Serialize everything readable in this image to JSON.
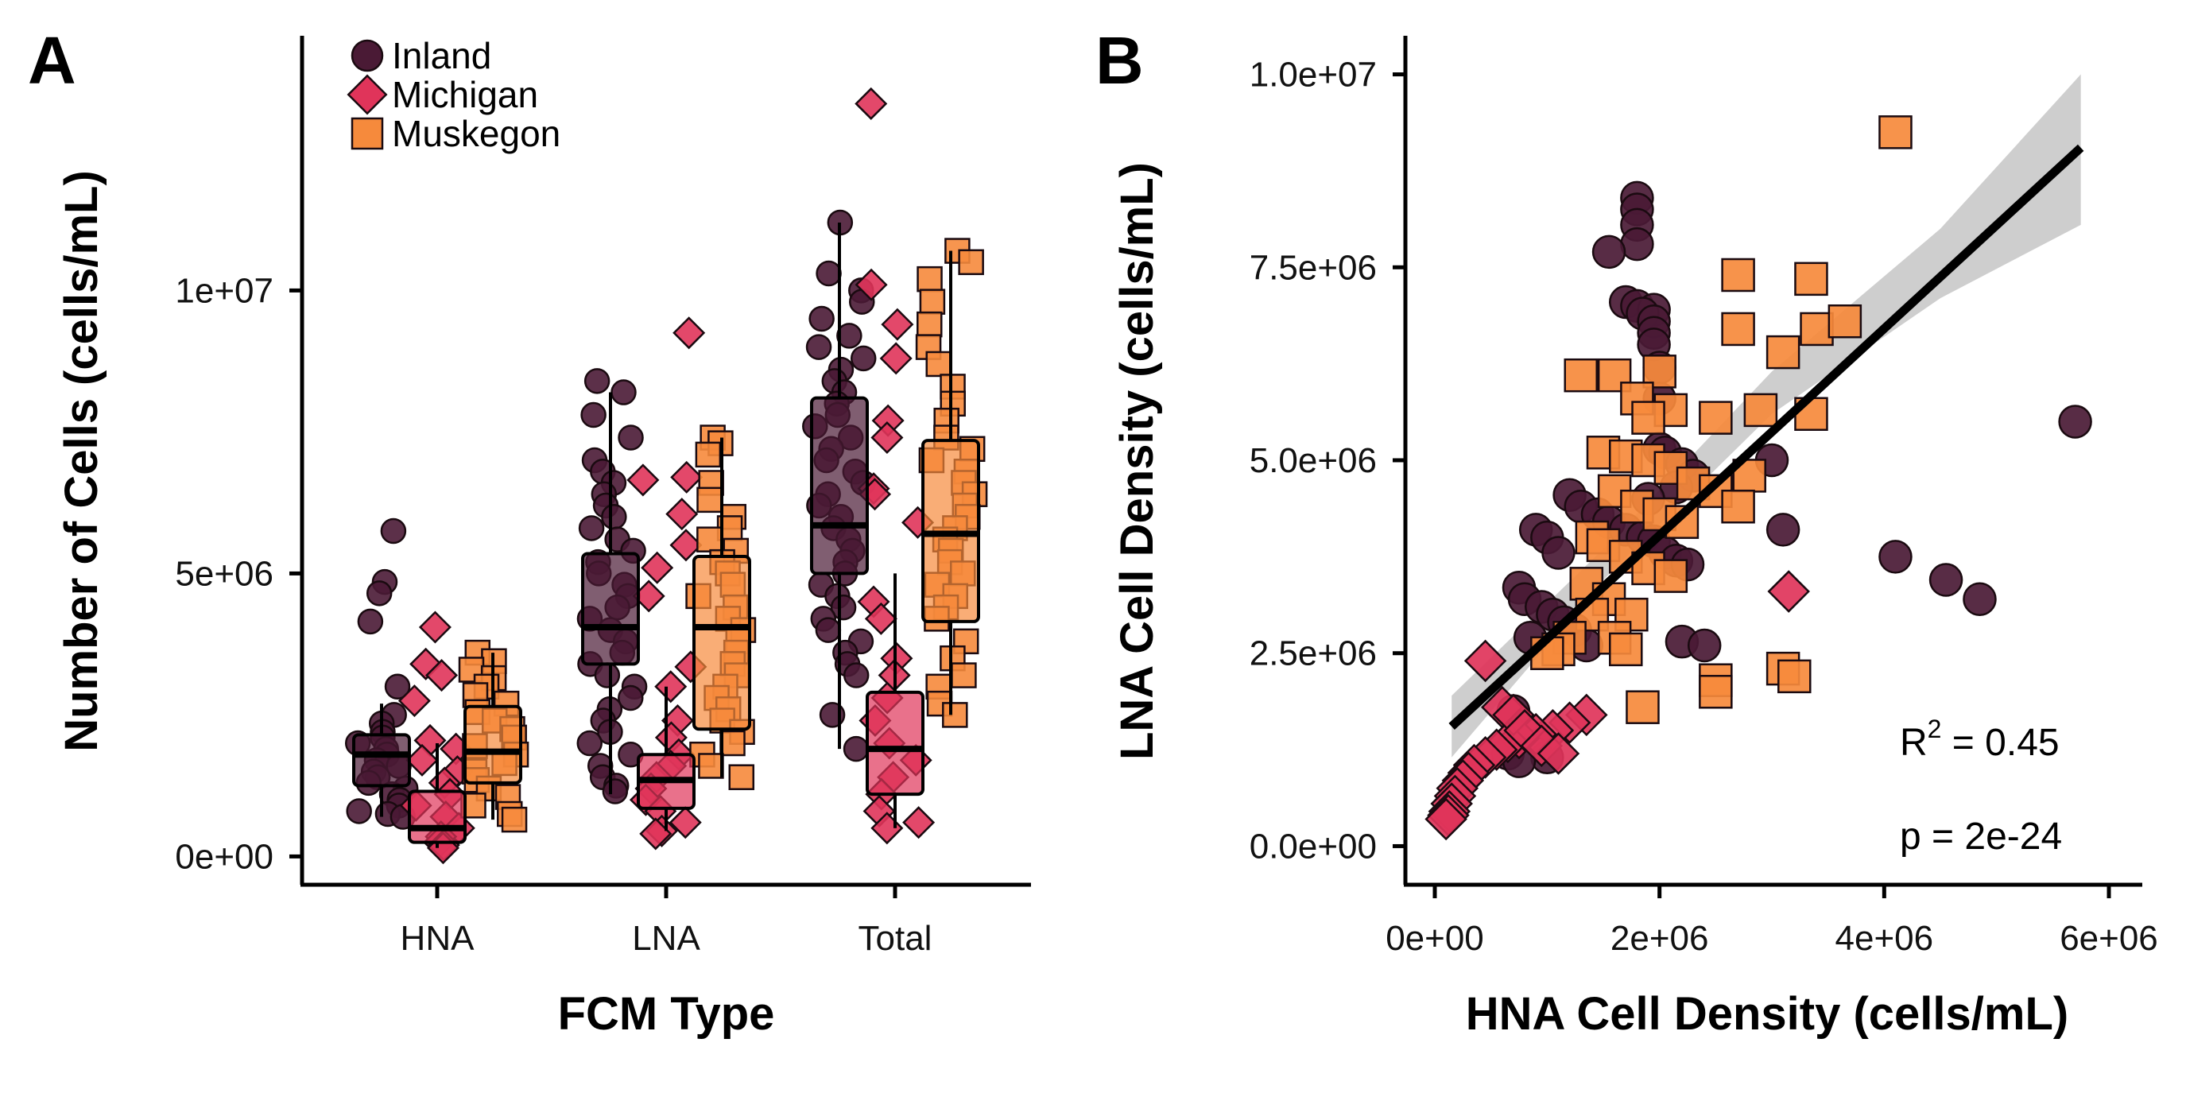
{
  "colors": {
    "Inland": "#4a1a35",
    "Michigan": "#e0345a",
    "Muskegon": "#f68a3c",
    "fit_line": "#000000",
    "ci_band": "#bdbdbd"
  },
  "chart_data": [
    {
      "panel": "A",
      "type": "box",
      "xlabel": "FCM Type",
      "ylabel": "Number of Cells (cells/mL)",
      "categories": [
        "HNA",
        "LNA",
        "Total"
      ],
      "ylim": [
        -500000,
        14500000
      ],
      "yticks": [
        0,
        5000000,
        10000000
      ],
      "ytick_labels": [
        "0e+00",
        "5e+06",
        "1e+07"
      ],
      "legend": {
        "position": "top-left",
        "entries": [
          "Inland",
          "Michigan",
          "Muskegon"
        ]
      },
      "series": [
        {
          "name": "Inland",
          "marker": "circle",
          "boxes": [
            {
              "category": "HNA",
              "q1": 1250000,
              "median": 1800000,
              "q3": 2150000,
              "lower": 700000,
              "upper": 2700000
            },
            {
              "category": "LNA",
              "q1": 3400000,
              "median": 4050000,
              "q3": 5350000,
              "lower": 1100000,
              "upper": 8200000
            },
            {
              "category": "Total",
              "q1": 5000000,
              "median": 5850000,
              "q3": 8100000,
              "lower": 1900000,
              "upper": 11200000
            }
          ],
          "points": [
            {
              "category": "HNA",
              "values": [
                5750000,
                4850000,
                4650000,
                4150000,
                3000000,
                2500000,
                2350000,
                2200000,
                2100000,
                2000000,
                1900000,
                1800000,
                1700000,
                1600000,
                1500000,
                1400000,
                1300000,
                1200000,
                1100000,
                1000000,
                900000,
                800000,
                750000,
                700000
              ]
            },
            {
              "category": "LNA",
              "values": [
                8400000,
                8200000,
                7800000,
                7400000,
                7000000,
                6800000,
                6600000,
                6400000,
                6200000,
                6000000,
                5800000,
                5600000,
                5400000,
                5200000,
                5000000,
                4800000,
                4600000,
                4400000,
                4200000,
                4000000,
                3800000,
                3600000,
                3400000,
                3200000,
                3000000,
                2800000,
                2600000,
                2400000,
                2200000,
                2000000,
                1800000,
                1600000,
                1400000,
                1250000,
                1150000
              ]
            },
            {
              "category": "Total",
              "values": [
                11200000,
                10300000,
                10000000,
                9800000,
                9500000,
                9200000,
                9000000,
                8800000,
                8600000,
                8400000,
                8200000,
                8000000,
                7800000,
                7600000,
                7400000,
                7200000,
                7000000,
                6800000,
                6600000,
                6400000,
                6200000,
                6000000,
                5800000,
                5600000,
                5400000,
                5200000,
                5000000,
                4800000,
                4600000,
                4400000,
                4200000,
                4000000,
                3800000,
                3600000,
                3400000,
                3200000,
                2500000,
                1900000
              ]
            }
          ]
        },
        {
          "name": "Michigan",
          "marker": "diamond",
          "boxes": [
            {
              "category": "HNA",
              "q1": 250000,
              "median": 500000,
              "q3": 1150000,
              "lower": 150000,
              "upper": 2000000
            },
            {
              "category": "LNA",
              "q1": 850000,
              "median": 1350000,
              "q3": 1800000,
              "lower": 450000,
              "upper": 3000000
            },
            {
              "category": "Total",
              "q1": 1100000,
              "median": 1900000,
              "q3": 2900000,
              "lower": 500000,
              "upper": 5000000
            }
          ],
          "points": [
            {
              "category": "HNA",
              "values": [
                4050000,
                3400000,
                3200000,
                2750000,
                2050000,
                1900000,
                1700000,
                1500000,
                1300000,
                1100000,
                900000,
                700000,
                500000,
                350000,
                250000,
                200000,
                150000
              ]
            },
            {
              "category": "LNA",
              "values": [
                9250000,
                6700000,
                6650000,
                6050000,
                5500000,
                5100000,
                4600000,
                3350000,
                3000000,
                2400000,
                2100000,
                1800000,
                1600000,
                1400000,
                1200000,
                1000000,
                800000,
                600000,
                450000,
                400000
              ]
            },
            {
              "category": "Total",
              "values": [
                13300000,
                10100000,
                9400000,
                8800000,
                7700000,
                7400000,
                6500000,
                6400000,
                5900000,
                4500000,
                4200000,
                3500000,
                3200000,
                2800000,
                2400000,
                2000000,
                1700000,
                1400000,
                1100000,
                800000,
                600000,
                500000
              ]
            }
          ]
        },
        {
          "name": "Muskegon",
          "marker": "square",
          "boxes": [
            {
              "category": "HNA",
              "q1": 1300000,
              "median": 1850000,
              "q3": 2650000,
              "lower": 650000,
              "upper": 3600000
            },
            {
              "category": "LNA",
              "q1": 2250000,
              "median": 4050000,
              "q3": 5300000,
              "lower": 1400000,
              "upper": 7400000
            },
            {
              "category": "Total",
              "q1": 4150000,
              "median": 5700000,
              "q3": 7350000,
              "lower": 2500000,
              "upper": 10700000
            }
          ],
          "points": [
            {
              "category": "HNA",
              "values": [
                3600000,
                3450000,
                3300000,
                3150000,
                3000000,
                2850000,
                2700000,
                2550000,
                2400000,
                2250000,
                2100000,
                1950000,
                1800000,
                1650000,
                1500000,
                1350000,
                1200000,
                1050000,
                900000,
                750000,
                650000
              ]
            },
            {
              "category": "LNA",
              "values": [
                7400000,
                7300000,
                7100000,
                6600000,
                6300000,
                6000000,
                5800000,
                5600000,
                5400000,
                5200000,
                5000000,
                4800000,
                4600000,
                4400000,
                4200000,
                4000000,
                3800000,
                3600000,
                3400000,
                3200000,
                3000000,
                2800000,
                2600000,
                2400000,
                2200000,
                2000000,
                1800000,
                1600000,
                1400000
              ]
            },
            {
              "category": "Total",
              "values": [
                10700000,
                10500000,
                10200000,
                9800000,
                9400000,
                9000000,
                8700000,
                8300000,
                8000000,
                7700000,
                7400000,
                7200000,
                7000000,
                6800000,
                6600000,
                6400000,
                6200000,
                6000000,
                5800000,
                5600000,
                5400000,
                5200000,
                5000000,
                4800000,
                4600000,
                4400000,
                4200000,
                3800000,
                3500000,
                3200000,
                3000000,
                2700000,
                2500000
              ]
            }
          ]
        }
      ]
    },
    {
      "panel": "B",
      "type": "scatter",
      "xlabel": "HNA Cell Density (cells/mL)",
      "ylabel": "LNA Cell Density (cells/mL)",
      "xlim": [
        -150000,
        6350000
      ],
      "ylim": [
        -500000,
        10500000
      ],
      "xticks": [
        0,
        2000000,
        4000000,
        6000000
      ],
      "xtick_labels": [
        "0e+00",
        "2e+06",
        "4e+06",
        "6e+06"
      ],
      "yticks": [
        0,
        2500000,
        5000000,
        7500000,
        10000000
      ],
      "ytick_labels": [
        "0.0e+00",
        "2.5e+06",
        "5.0e+06",
        "7.5e+06",
        "1.0e+07"
      ],
      "fit": {
        "x": [
          150000,
          5750000
        ],
        "y": [
          1550000,
          9050000
        ]
      },
      "ci_band": {
        "x": [
          150000,
          1500000,
          3000000,
          4500000,
          5750000
        ],
        "lower": [
          1150000,
          3450000,
          5600000,
          7100000,
          8050000
        ],
        "upper": [
          1950000,
          3850000,
          6150000,
          8000000,
          10000000
        ]
      },
      "annotations": [
        "R",
        "2",
        " = 0.45",
        "p = 2e-24"
      ],
      "series": [
        {
          "name": "Inland",
          "marker": "circle",
          "x": [
            1800000,
            1800000,
            1800000,
            1800000,
            1550000,
            1700000,
            1800000,
            1950000,
            1850000,
            1950000,
            1950000,
            1950000,
            2000000,
            2000000,
            2000000,
            2050000,
            2200000,
            2300000,
            2150000,
            1900000,
            1200000,
            1300000,
            1450000,
            1550000,
            1700000,
            1850000,
            1950000,
            2050000,
            2150000,
            2250000,
            900000,
            1000000,
            1100000,
            750000,
            800000,
            950000,
            1050000,
            1150000,
            1250000,
            1350000,
            2200000,
            2400000,
            3000000,
            3100000,
            850000,
            700000,
            650000,
            1000000,
            750000,
            4100000,
            4550000,
            4850000,
            5700000
          ],
          "y": [
            8400000,
            8250000,
            8050000,
            7800000,
            7700000,
            7050000,
            7000000,
            6950000,
            6900000,
            6800000,
            6650000,
            6500000,
            6200000,
            5800000,
            5150000,
            5100000,
            4950000,
            4800000,
            4650000,
            4500000,
            4550000,
            4400000,
            4300000,
            4200000,
            4100000,
            4000000,
            3950000,
            3800000,
            3700000,
            3650000,
            4100000,
            4000000,
            3800000,
            3350000,
            3200000,
            3100000,
            3000000,
            2900000,
            2800000,
            2600000,
            2650000,
            2600000,
            5000000,
            4100000,
            2700000,
            1750000,
            1200000,
            1150000,
            1100000,
            3750000,
            3450000,
            3200000,
            5500000
          ]
        },
        {
          "name": "Michigan",
          "marker": "diamond",
          "x": [
            3150000,
            1350000,
            1200000,
            1050000,
            900000,
            750000,
            650000,
            550000,
            450000,
            350000,
            300000,
            250000,
            200000,
            180000,
            150000,
            130000,
            120000,
            100000,
            450000,
            600000,
            700000,
            800000,
            950000,
            1100000
          ],
          "y": [
            3300000,
            1700000,
            1600000,
            1500000,
            1450000,
            1400000,
            1350000,
            1250000,
            1150000,
            1050000,
            950000,
            850000,
            750000,
            650000,
            550000,
            450000,
            400000,
            350000,
            2400000,
            1800000,
            1700000,
            1500000,
            1300000,
            1200000
          ]
        },
        {
          "name": "Muskegon",
          "marker": "square",
          "x": [
            4100000,
            2700000,
            3350000,
            2700000,
            3400000,
            3650000,
            3100000,
            1600000,
            2000000,
            1300000,
            1800000,
            2100000,
            1900000,
            2500000,
            2900000,
            3350000,
            2800000,
            1500000,
            1700000,
            1900000,
            2100000,
            2300000,
            2500000,
            2700000,
            1600000,
            1800000,
            2000000,
            2200000,
            1400000,
            1500000,
            1700000,
            1900000,
            2100000,
            1350000,
            1550000,
            1750000,
            1400000,
            1600000,
            1200000,
            1700000,
            1100000,
            1000000,
            2500000,
            2500000,
            3100000,
            3200000,
            1850000
          ],
          "y": [
            9250000,
            7400000,
            7350000,
            6700000,
            6700000,
            6800000,
            6400000,
            6100000,
            6150000,
            6100000,
            5800000,
            5650000,
            5550000,
            5550000,
            5650000,
            5600000,
            4800000,
            5100000,
            5050000,
            5000000,
            4900000,
            4700000,
            4600000,
            4400000,
            4600000,
            4400000,
            4300000,
            4200000,
            4000000,
            3900000,
            3750000,
            3600000,
            3500000,
            3400000,
            3200000,
            3000000,
            3000000,
            2700000,
            2700000,
            2550000,
            2550000,
            2500000,
            2150000,
            2000000,
            2300000,
            2200000,
            1800000
          ]
        }
      ]
    }
  ]
}
